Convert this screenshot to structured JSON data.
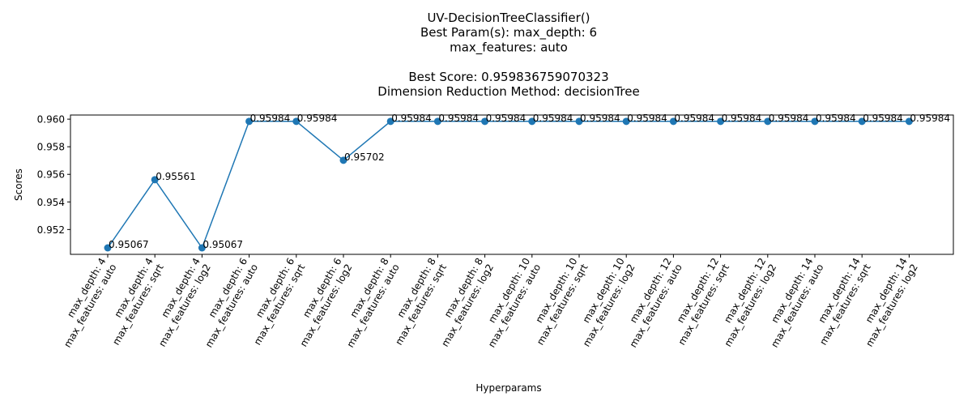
{
  "chart_data": {
    "type": "line",
    "title_lines": [
      "UV-DecisionTreeClassifier()",
      "Best Param(s): max_depth: 6",
      "max_features: auto",
      "",
      "Best Score: 0.959836759070323",
      "Dimension Reduction Method: decisionTree"
    ],
    "xlabel": "Hyperparams",
    "ylabel": "Scores",
    "ylim": [
      0.9502,
      0.9603
    ],
    "yticks": [
      "0.952",
      "0.954",
      "0.956",
      "0.958",
      "0.960"
    ],
    "color": "#1f77b4",
    "categories": [
      [
        "max_depth: 4",
        "max_features: auto"
      ],
      [
        "max_depth: 4",
        "max_features: sqrt"
      ],
      [
        "max_depth: 4",
        "max_features: log2"
      ],
      [
        "max_depth: 6",
        "max_features: auto"
      ],
      [
        "max_depth: 6",
        "max_features: sqrt"
      ],
      [
        "max_depth: 6",
        "max_features: log2"
      ],
      [
        "max_depth: 8",
        "max_features: auto"
      ],
      [
        "max_depth: 8",
        "max_features: sqrt"
      ],
      [
        "max_depth: 8",
        "max_features: log2"
      ],
      [
        "max_depth: 10",
        "max_features: auto"
      ],
      [
        "max_depth: 10",
        "max_features: sqrt"
      ],
      [
        "max_depth: 10",
        "max_features: log2"
      ],
      [
        "max_depth: 12",
        "max_features: auto"
      ],
      [
        "max_depth: 12",
        "max_features: sqrt"
      ],
      [
        "max_depth: 12",
        "max_features: log2"
      ],
      [
        "max_depth: 14",
        "max_features: auto"
      ],
      [
        "max_depth: 14",
        "max_features: sqrt"
      ],
      [
        "max_depth: 14",
        "max_features: log2"
      ]
    ],
    "values": [
      0.95067,
      0.95561,
      0.95067,
      0.95984,
      0.95984,
      0.95702,
      0.95984,
      0.95984,
      0.95984,
      0.95984,
      0.95984,
      0.95984,
      0.95984,
      0.95984,
      0.95984,
      0.95984,
      0.95984,
      0.95984
    ],
    "labels": [
      "0.95067",
      "0.95561",
      "0.95067",
      "0.95984",
      "0.95984",
      "0.95702",
      "0.95984",
      "0.95984",
      "0.95984",
      "0.95984",
      "0.95984",
      "0.95984",
      "0.95984",
      "0.95984",
      "0.95984",
      "0.95984",
      "0.95984",
      "0.95984"
    ]
  }
}
